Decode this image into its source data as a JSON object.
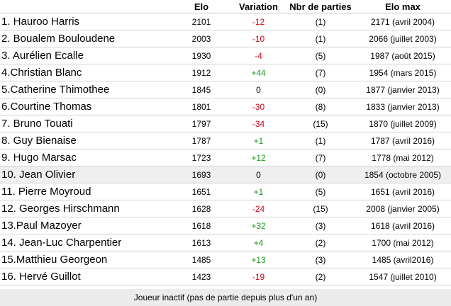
{
  "header": {
    "elo": "Elo",
    "variation": "Variation",
    "games": "Nbr de parties",
    "elo_max": "Elo max"
  },
  "rows": [
    {
      "name": "1. Hauroo Harris",
      "elo": "2101",
      "variation": "-12",
      "sign": "neg",
      "games": "(1)",
      "elo_max": "2171 (avril 2004)"
    },
    {
      "name": "2. Boualem Bouloudene",
      "elo": "2003",
      "variation": "-10",
      "sign": "neg",
      "games": "(1)",
      "elo_max": "2066 (juillet 2003)"
    },
    {
      "name": "3. Aurélien Ecalle",
      "elo": "1930",
      "variation": "-4",
      "sign": "neg",
      "games": "(5)",
      "elo_max": "1987 (août 2015)"
    },
    {
      "name": "4.Christian Blanc",
      "elo": "1912",
      "variation": "+44",
      "sign": "pos",
      "games": "(7)",
      "elo_max": "1954 (mars 2015)"
    },
    {
      "name": "5.Catherine Thimothee",
      "elo": "1845",
      "variation": "0",
      "sign": "zero",
      "games": "(0)",
      "elo_max": "1877 (janvier 2013)"
    },
    {
      "name": "6.Courtine Thomas",
      "elo": "1801",
      "variation": "-30",
      "sign": "neg",
      "games": "(8)",
      "elo_max": "1833 (janvier 2013)"
    },
    {
      "name": "7. Bruno Touati",
      "elo": "1797",
      "variation": "-34",
      "sign": "neg",
      "games": "(15)",
      "elo_max": "1870 (juillet 2009)"
    },
    {
      "name": "8. Guy Bienaise",
      "elo": "1787",
      "variation": "+1",
      "sign": "pos",
      "games": "(1)",
      "elo_max": "1787 (avril 2016)"
    },
    {
      "name": "9. Hugo Marsac",
      "elo": "1723",
      "variation": "+12",
      "sign": "pos",
      "games": "(7)",
      "elo_max": "1778 (mai 2012)"
    },
    {
      "name": "10. Jean Olivier",
      "elo": "1693",
      "variation": "0",
      "sign": "zero",
      "games": "(0)",
      "elo_max": "1854 (octobre 2005)",
      "highlight": true
    },
    {
      "name": "11. Pierre Moyroud",
      "elo": "1651",
      "variation": "+1",
      "sign": "pos",
      "games": "(5)",
      "elo_max": "1651 (avril 2016)"
    },
    {
      "name": "12. Georges Hirschmann",
      "elo": "1628",
      "variation": "-24",
      "sign": "neg",
      "games": "(15)",
      "elo_max": "2008 (janvier 2005)"
    },
    {
      "name": "13.Paul Mazoyer",
      "elo": "1618",
      "variation": "+32",
      "sign": "pos",
      "games": "(3)",
      "elo_max": "1618 (avril 2016)"
    },
    {
      "name": "14. Jean-Luc Charpentier",
      "elo": "1613",
      "variation": "+4",
      "sign": "pos",
      "games": "(2)",
      "elo_max": "1700 (mai 2012)"
    },
    {
      "name": "15.Matthieu Georgeon",
      "elo": "1485",
      "variation": "+13",
      "sign": "pos",
      "games": "(3)",
      "elo_max": "1485 (avril2016)"
    },
    {
      "name": "16. Hervé Guillot",
      "elo": "1423",
      "variation": "-19",
      "sign": "neg",
      "games": "(2)",
      "elo_max": "1547 (juillet 2010)"
    }
  ],
  "footer_note": "Joueur inactif (pas de partie depuis plus d'un an)",
  "colors": {
    "negative": "#d0021b",
    "positive": "#1a9a1a",
    "inactive_bg": "#efefef"
  }
}
